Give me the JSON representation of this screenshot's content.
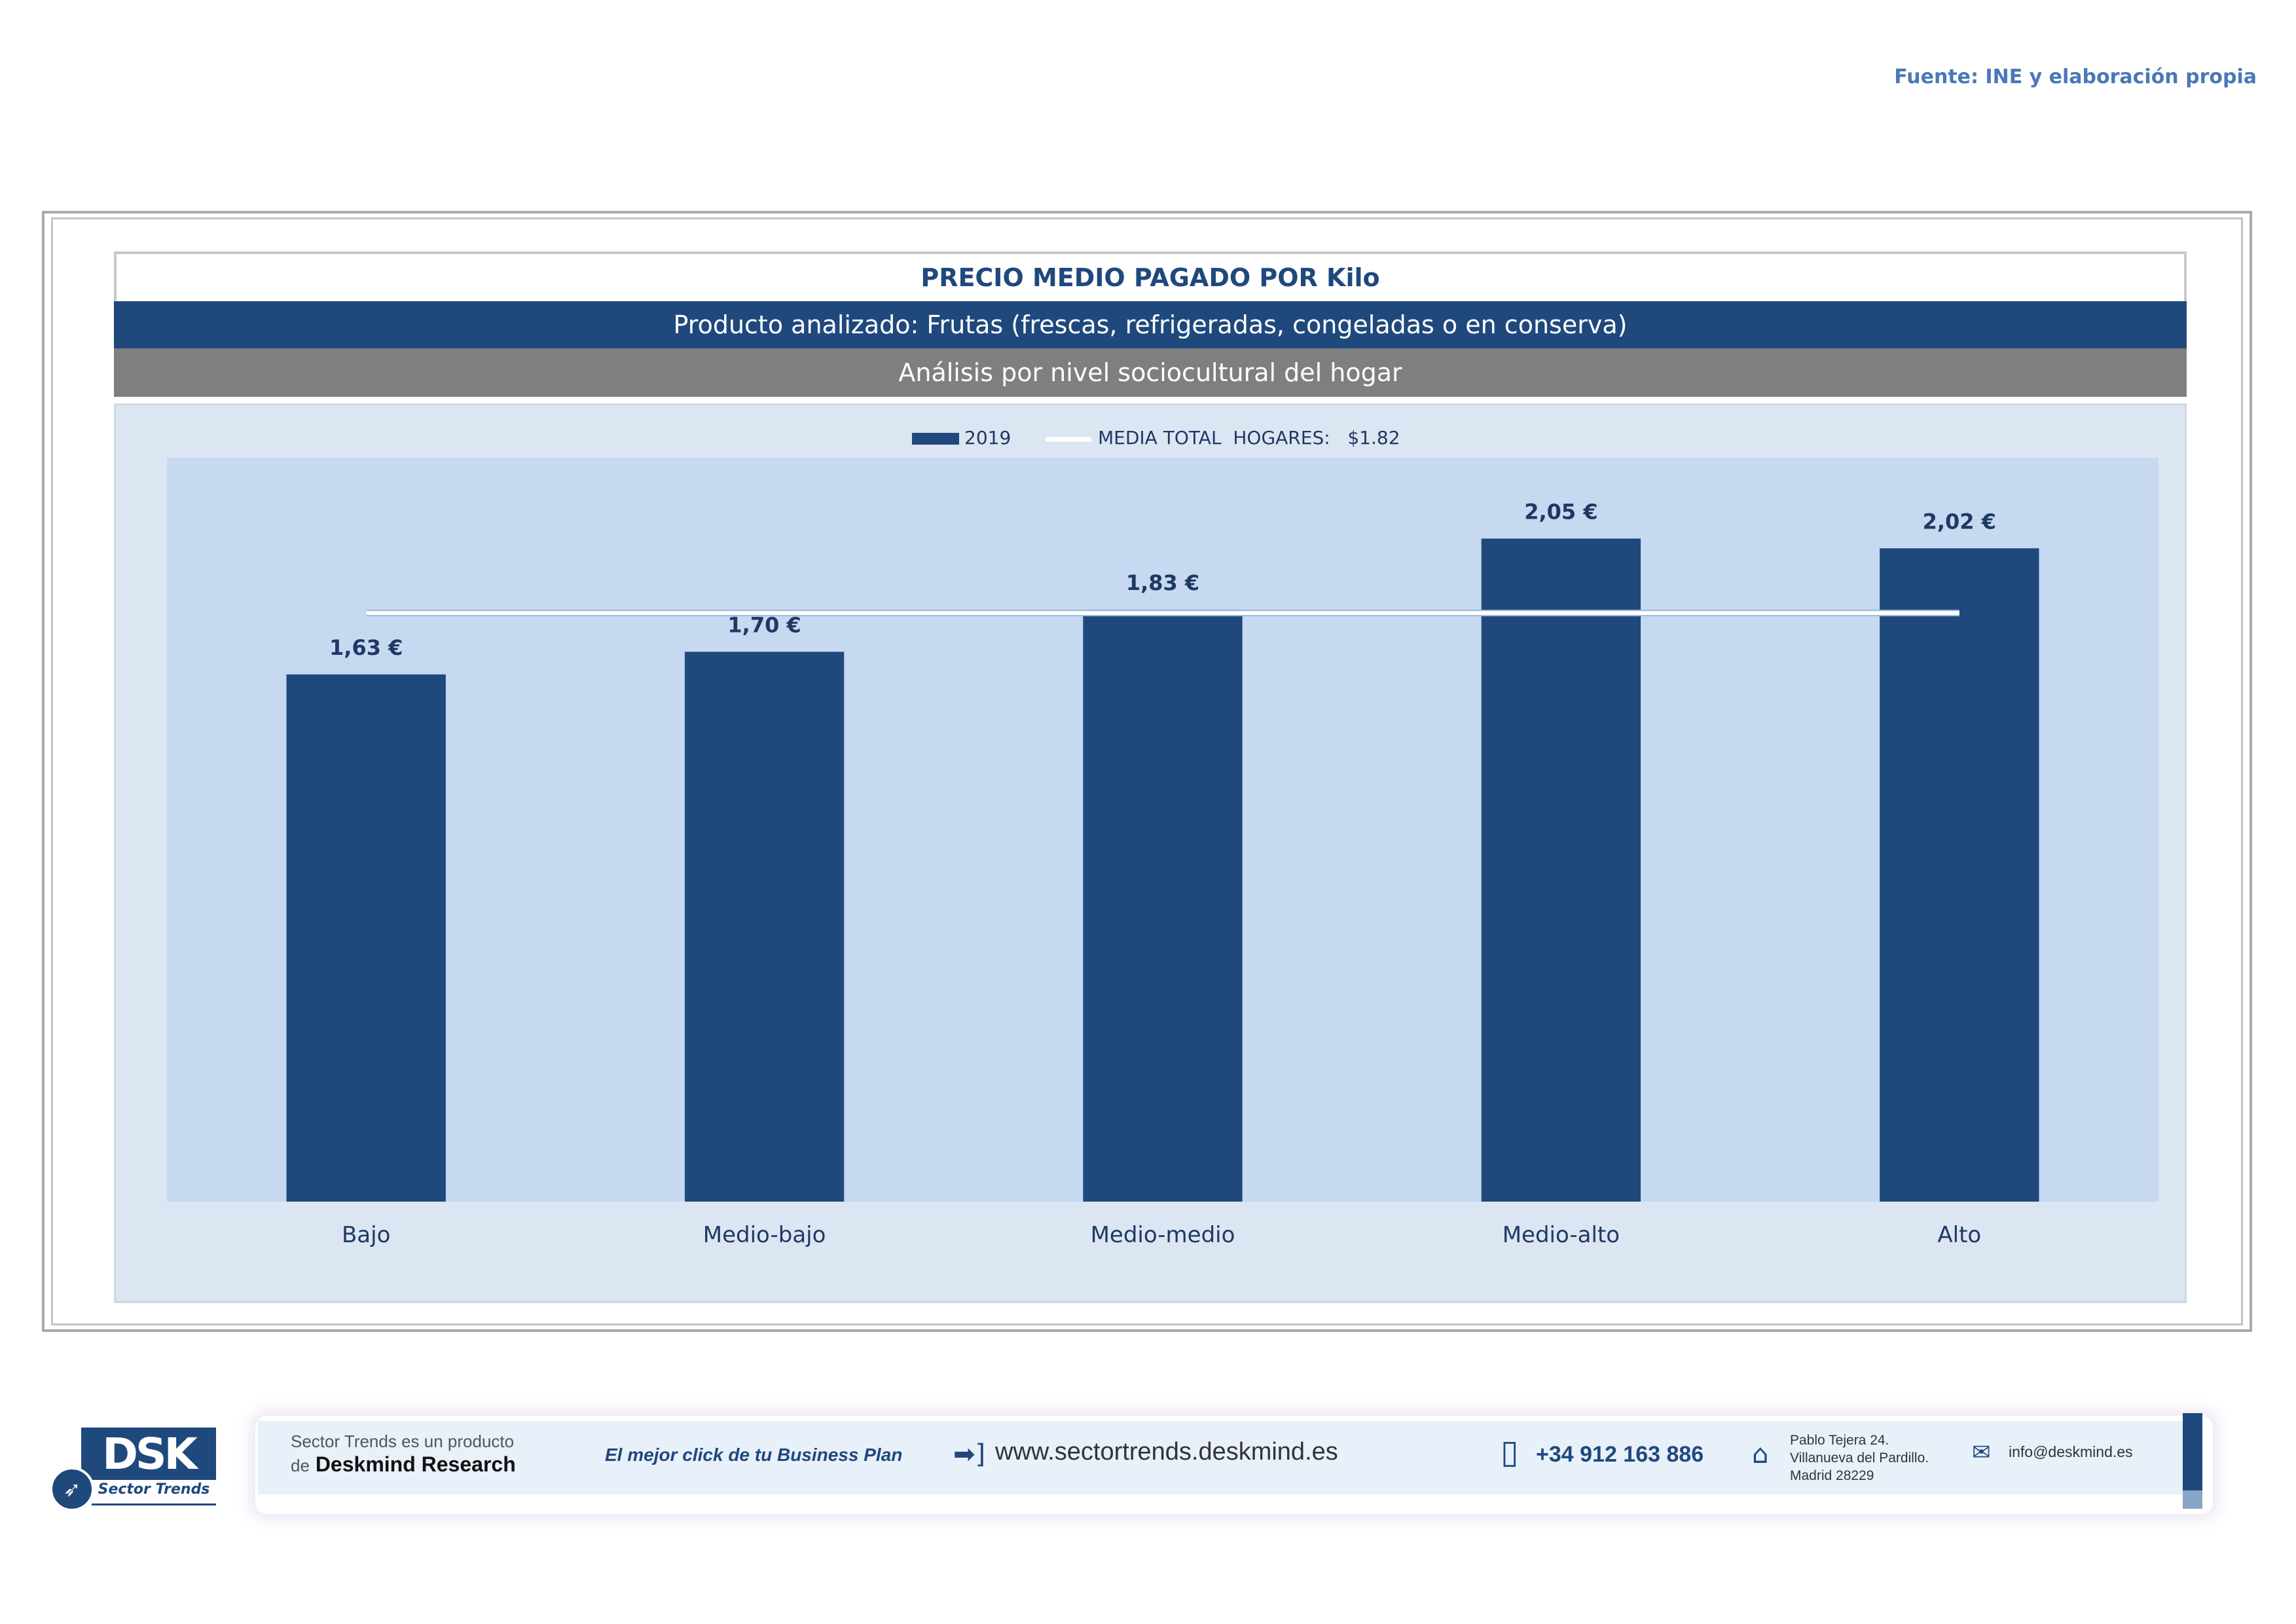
{
  "source_note": "Fuente: INE y elaboración propia",
  "header": {
    "title": "PRECIO MEDIO PAGADO POR Kilo",
    "product": "Producto analizado: Frutas (frescas, refrigeradas, congeladas o en conserva)",
    "analysis": "Análisis por nivel sociocultural del hogar"
  },
  "chart_data": {
    "type": "bar",
    "categories": [
      "Bajo",
      "Medio-bajo",
      "Medio-medio",
      "Medio-alto",
      "Alto"
    ],
    "series": [
      {
        "name": "2019",
        "values": [
          1.63,
          1.7,
          1.83,
          2.05,
          2.02
        ],
        "color": "#1f497d"
      }
    ],
    "data_labels": [
      "1,63 €",
      "1,70 €",
      "1,83 €",
      "2,05 €",
      "2,02 €"
    ],
    "reference_line": {
      "name": "MEDIA TOTAL  HOGARES:   $1.82",
      "value": 1.82,
      "color": "#ffffff"
    },
    "ylim": [
      0,
      2.3
    ],
    "grid": false,
    "legend": "top-center",
    "plot_background": "#c6d9f1",
    "panel_background": "#dce6f2"
  },
  "footer": {
    "logo_text": "DSK",
    "logo_sub": "Sector Trends",
    "tagline_1": "Sector Trends es un producto",
    "tagline_2_prefix": "de",
    "tagline_2": "Deskmind Research",
    "slogan": "El mejor click de tu Business Plan",
    "website": "www.sectortrends.deskmind.es",
    "phone": "+34 912 163 886",
    "address_1": "Pablo Tejera 24.",
    "address_2": "Villanueva del Pardillo.",
    "address_3": "Madrid 28229",
    "email": "info@deskmind.es",
    "icons": [
      "web-arrow-icon",
      "phone-icon",
      "home-icon",
      "mail-icon",
      "rocket-icon"
    ]
  }
}
